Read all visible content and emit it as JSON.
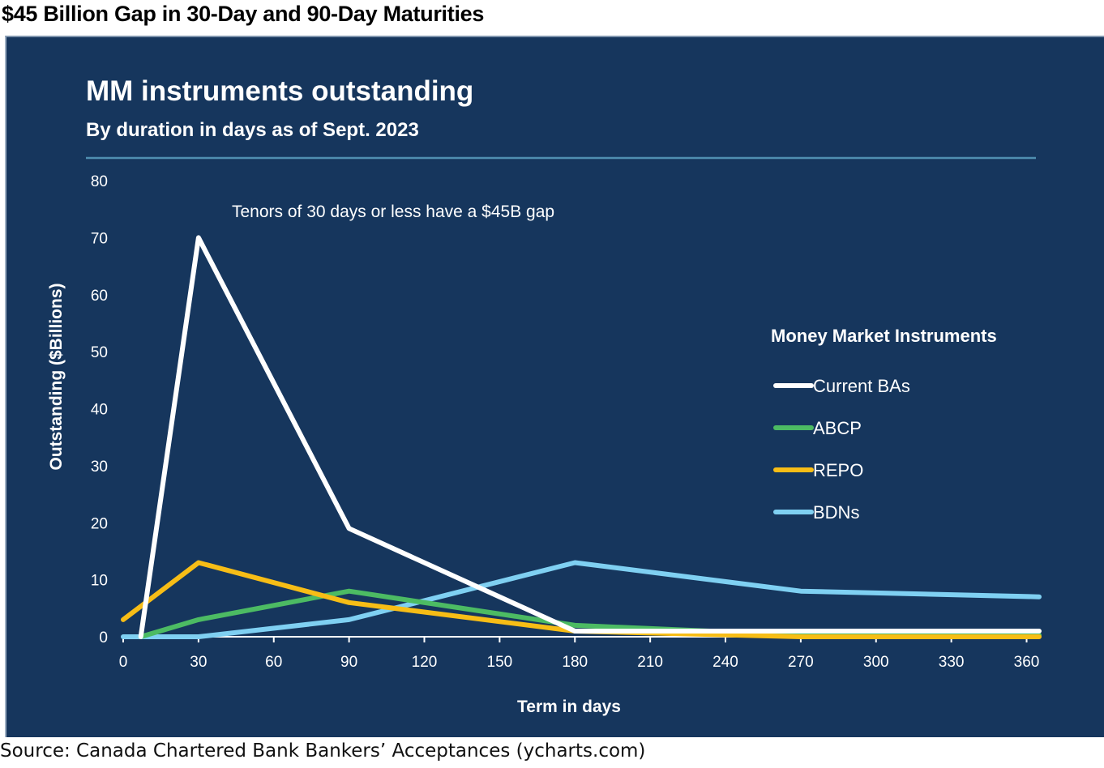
{
  "page": {
    "title": "$45 Billion Gap in 30-Day and 90-Day Maturities",
    "source": "Source: Canada Chartered Bank Bankers’ Acceptances (ycharts.com)"
  },
  "colors": {
    "panel_background": "#16365d",
    "separator": "#4f8fb0",
    "current_bas": "#ffffff",
    "abcp": "#4cbb63",
    "repo": "#f7bd16",
    "bdns": "#7fd0f2"
  },
  "chart_data": {
    "type": "line",
    "title": "MM instruments outstanding",
    "subtitle": "By duration in days as of Sept. 2023",
    "xlabel": "Term in days",
    "ylabel": "Outstanding ($Billions)",
    "xlim": [
      0,
      365
    ],
    "ylim": [
      0,
      80
    ],
    "x_ticks": [
      0,
      30,
      60,
      90,
      120,
      150,
      180,
      210,
      240,
      270,
      300,
      330,
      360
    ],
    "y_ticks": [
      0,
      10,
      20,
      30,
      40,
      50,
      60,
      70,
      80
    ],
    "grid": false,
    "annotation": "Tenors of 30 days or less have a $45B gap",
    "legend": {
      "title": "Money Market Instruments",
      "placement": "right"
    },
    "series": [
      {
        "name": "Current BAs",
        "color": "#ffffff",
        "points": [
          [
            7,
            0
          ],
          [
            30,
            70
          ],
          [
            90,
            19
          ],
          [
            180,
            1
          ],
          [
            270,
            1
          ],
          [
            365,
            1
          ]
        ]
      },
      {
        "name": "ABCP",
        "color": "#4cbb63",
        "points": [
          [
            7,
            0
          ],
          [
            30,
            3
          ],
          [
            90,
            8
          ],
          [
            180,
            2
          ],
          [
            270,
            0.3
          ],
          [
            365,
            0.3
          ]
        ]
      },
      {
        "name": "REPO",
        "color": "#f7bd16",
        "points": [
          [
            0,
            3
          ],
          [
            30,
            13
          ],
          [
            90,
            6
          ],
          [
            180,
            1
          ],
          [
            270,
            0
          ],
          [
            365,
            0
          ]
        ]
      },
      {
        "name": "BDNs",
        "color": "#7fd0f2",
        "points": [
          [
            0,
            0
          ],
          [
            30,
            0
          ],
          [
            90,
            3
          ],
          [
            180,
            13
          ],
          [
            270,
            8
          ],
          [
            365,
            7
          ]
        ]
      }
    ]
  }
}
